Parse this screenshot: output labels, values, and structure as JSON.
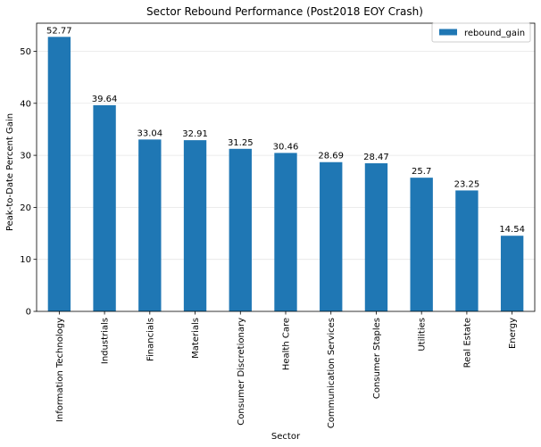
{
  "chart_data": {
    "type": "bar",
    "title": "Sector Rebound Performance (Post2018 EOY Crash)",
    "xlabel": "Sector",
    "ylabel": "Peak-to-Date Percent Gain",
    "categories": [
      "Information Technology",
      "Industrials",
      "Financials",
      "Materials",
      "Consumer Discretionary",
      "Health Care",
      "Communication Services",
      "Consumer Staples",
      "Utilities",
      "Real Estate",
      "Energy"
    ],
    "series": [
      {
        "name": "rebound_gain",
        "values": [
          52.77,
          39.64,
          33.04,
          32.91,
          31.25,
          30.46,
          28.69,
          28.47,
          25.7,
          23.25,
          14.54
        ],
        "labels": [
          "52.77",
          "39.64",
          "33.04",
          "32.91",
          "31.25",
          "30.46",
          "28.69",
          "28.47",
          "25.7",
          "23.25",
          "14.54"
        ]
      }
    ],
    "ylim": [
      0,
      55.4
    ],
    "yticks": [
      0,
      10,
      20,
      30,
      40,
      50
    ],
    "ytick_labels": [
      "0",
      "10",
      "20",
      "30",
      "40",
      "50"
    ],
    "grid": "horizontal",
    "legend": "top-right",
    "colors": {
      "bar": "#1f77b4",
      "grid": "#e6e6e6",
      "axis": "#000000"
    }
  }
}
